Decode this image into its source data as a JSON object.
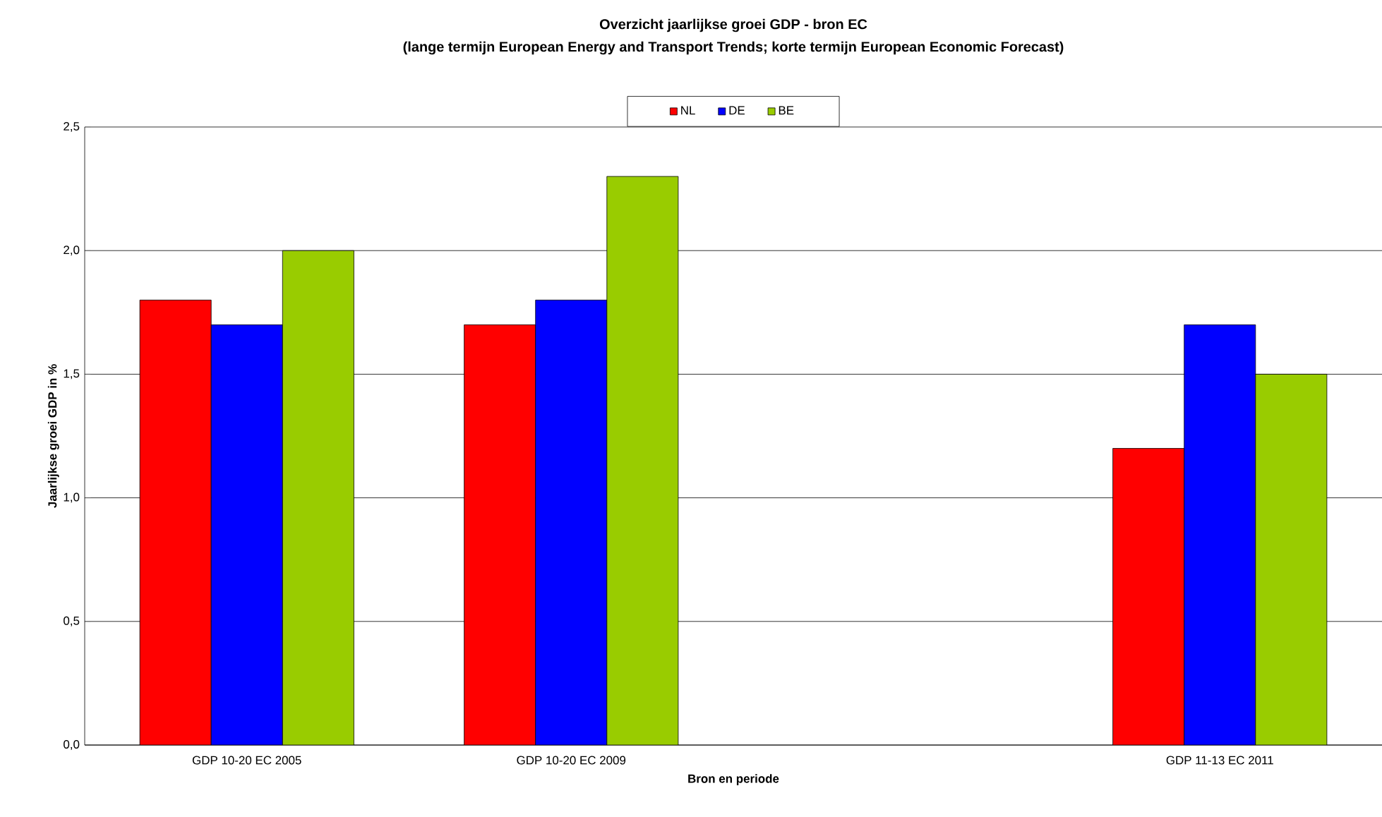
{
  "chart_data": {
    "type": "bar",
    "title": "Overzicht jaarlijkse groei GDP - bron EC",
    "subtitle": "(lange termijn European Energy and Transport Trends; korte termijn European Economic Forecast)",
    "xlabel": "Bron en periode",
    "ylabel": "Jaarlijkse groei GDP in %",
    "categories": [
      "GDP 10-20 EC 2005",
      "GDP 10-20 EC 2009",
      null,
      "GDP 11-13 EC 2011"
    ],
    "series": [
      {
        "name": "NL",
        "color": "#ff0000",
        "values": [
          1.8,
          1.7,
          null,
          1.2
        ]
      },
      {
        "name": "DE",
        "color": "#0000ff",
        "values": [
          1.7,
          1.8,
          null,
          1.7
        ]
      },
      {
        "name": "BE",
        "color": "#99cc00",
        "values": [
          2.0,
          2.3,
          null,
          1.5
        ]
      }
    ],
    "ylim": [
      0,
      2.5
    ],
    "yticks": [
      {
        "value": 0,
        "label": "0,0"
      },
      {
        "value": 0.5,
        "label": "0,5"
      },
      {
        "value": 1.0,
        "label": "1,0"
      },
      {
        "value": 1.5,
        "label": "1,5"
      },
      {
        "value": 2.0,
        "label": "2,0"
      },
      {
        "value": 2.5,
        "label": "2,5"
      }
    ],
    "grid": "y",
    "legend": "top"
  }
}
